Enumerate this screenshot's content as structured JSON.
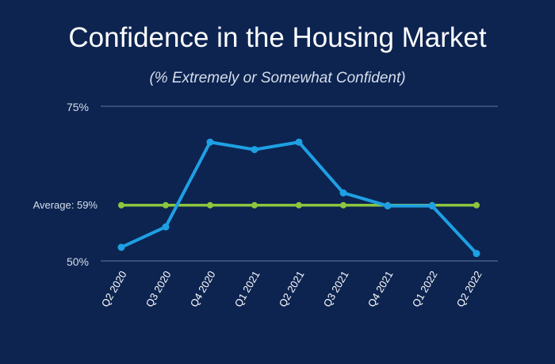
{
  "chart_data": {
    "type": "line",
    "title": "Confidence in the Housing Market",
    "subtitle": "(% Extremely or Somewhat Confident)",
    "categories": [
      "Q2 2020",
      "Q3 2020",
      "Q4 2020",
      "Q1 2021",
      "Q2 2021",
      "Q3 2021",
      "Q4 2021",
      "Q1 2022",
      "Q2 2022"
    ],
    "series": [
      {
        "values": [
          52.2,
          55.5,
          69.2,
          68.0,
          69.2,
          61.0,
          58.9,
          58.9,
          51.2
        ],
        "color": "#1ea0e3"
      },
      {
        "values": [
          59,
          59,
          59,
          59,
          59,
          59,
          59,
          59,
          59
        ],
        "color": "#8cc63f"
      }
    ],
    "ylim": [
      50,
      75
    ],
    "yticks": [
      "75%",
      "50%"
    ],
    "average_label": "Average: 59%",
    "grid": true,
    "gridline_color": "#5a7aa6"
  }
}
